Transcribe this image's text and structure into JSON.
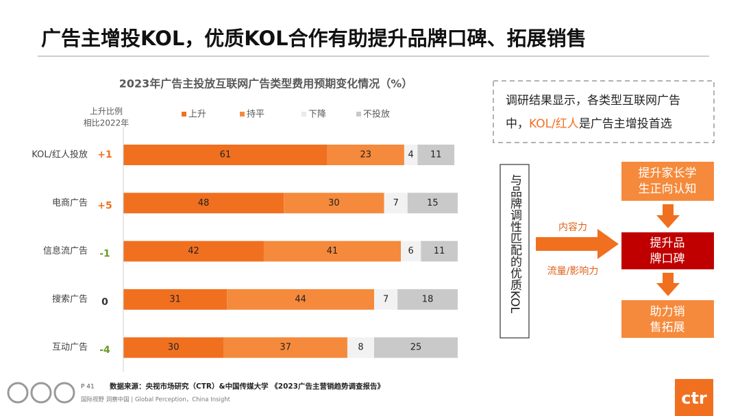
{
  "header": {
    "title": "广告主增投KOL，优质KOL合作有助提升品牌口碑、拓展销售"
  },
  "chart_data": {
    "type": "stacked-barh",
    "title": "2023年广告主投放互联网广告类型费用预期变化情况（%）",
    "categories": [
      "KOL/红人投放",
      "电商广告",
      "信息流广告",
      "搜索广告",
      "互动广告"
    ],
    "series": [
      {
        "name": "上升",
        "color": "#f07020",
        "values": [
          61,
          48,
          42,
          31,
          30
        ]
      },
      {
        "name": "持平",
        "color": "#f58a3c",
        "values": [
          23,
          30,
          41,
          44,
          37
        ]
      },
      {
        "name": "下降",
        "color": "#f2f2f2",
        "values": [
          4,
          7,
          6,
          7,
          8
        ]
      },
      {
        "name": "不投放",
        "color": "#c9c9c9",
        "values": [
          11,
          15,
          11,
          18,
          25
        ]
      }
    ],
    "xlim": [
      0,
      100
    ],
    "change": {
      "label": [
        "上升比例",
        "相比2022年"
      ],
      "values": [
        1,
        5,
        -1,
        0,
        -4
      ],
      "value_labels": [
        "+1",
        "+5",
        "-1",
        "0",
        "-4"
      ]
    }
  },
  "callout": {
    "parts": [
      "调研结果显示，各类型互联网广告",
      "中，",
      "KOL/红人",
      "是广告主增投首选"
    ]
  },
  "diagram": {
    "source": "与品牌调性匹配的优质KOL",
    "arrow_labels": [
      "内容力",
      "流量/影响力"
    ],
    "nodes": [
      {
        "lines": [
          "提升家长学",
          "生正向认知"
        ]
      },
      {
        "lines": [
          "提升品",
          "牌口碑"
        ]
      },
      {
        "lines": [
          "助力销",
          "售拓展"
        ]
      }
    ]
  },
  "footer": {
    "page": "P 41",
    "source": "数据来源：央视市场研究（CTR）&中国传媒大学 《2023广告主营销趋势调查报告》",
    "tagline": "国际视野  洞察中国 | Global Perception，China Insight",
    "logo": "ctr"
  }
}
